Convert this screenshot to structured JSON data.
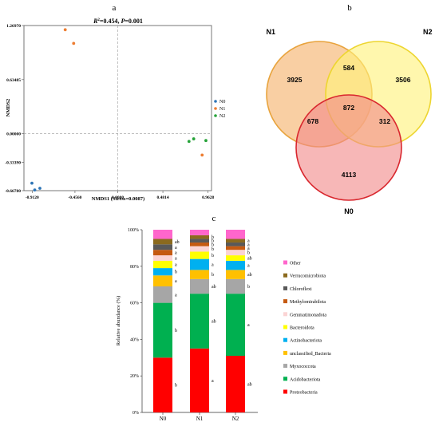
{
  "panels": {
    "a": {
      "label": "a",
      "title_r2": "R",
      "title_rest": "=0.454, ",
      "title_p": "P",
      "title_pval": "=0.001",
      "xlabel": "NMDS1 (Stress=0.0087)",
      "ylabel": "NMDS2",
      "xticks": [
        "-0.9120",
        "-0.4560",
        "0.0000",
        "0.4814",
        "0.9628"
      ],
      "yticks": [
        "1.26970",
        "0.63485",
        "0.00000",
        "-0.33390",
        "-0.66780"
      ]
    },
    "b": {
      "label": "b"
    },
    "c": {
      "label": "c",
      "ylabel": "Relative abundance (%)",
      "yticks": [
        "100%",
        "80%",
        "60%",
        "40%",
        "20%",
        "0%"
      ]
    }
  },
  "chart_data": [
    {
      "type": "scatter",
      "xlim": [
        -1.0,
        1.0
      ],
      "ylim": [
        -0.6678,
        1.2697
      ],
      "legend_position": "right",
      "series": [
        {
          "name": "N0",
          "color": "#2E75B6",
          "points": [
            [
              -0.915,
              -0.58
            ],
            [
              -0.885,
              -0.66
            ],
            [
              -0.83,
              -0.64
            ]
          ]
        },
        {
          "name": "N1",
          "color": "#ED7D31",
          "points": [
            [
              -0.56,
              1.22
            ],
            [
              -0.47,
              1.06
            ],
            [
              0.9,
              -0.25
            ]
          ]
        },
        {
          "name": "N2",
          "color": "#27A33A",
          "points": [
            [
              0.76,
              -0.09
            ],
            [
              0.81,
              -0.06
            ],
            [
              0.94,
              -0.08
            ]
          ]
        }
      ]
    },
    {
      "type": "venn",
      "sets": [
        {
          "name": "N1",
          "color": "#F5B26B",
          "edge": "#E8A33C"
        },
        {
          "name": "N2",
          "color": "#FFF27A",
          "edge": "#EDD530"
        },
        {
          "name": "N0",
          "color": "#F28A8A",
          "edge": "#D9272E"
        }
      ],
      "regions": {
        "N1_only": "3925",
        "N2_only": "3506",
        "N0_only": "4113",
        "N1_N2": "584",
        "N1_N0": "678",
        "N2_N0": "312",
        "all": "872"
      }
    },
    {
      "type": "bar",
      "stacked": true,
      "categories": [
        "N0",
        "N1",
        "N2"
      ],
      "ylim": [
        0,
        100
      ],
      "series": [
        {
          "name": "Proteobacteria",
          "color": "#FF0000",
          "values": [
            30,
            35,
            31
          ],
          "letters": [
            "b",
            "a",
            "ab"
          ]
        },
        {
          "name": "Acidobacteriota",
          "color": "#00B050",
          "values": [
            30,
            30,
            34
          ],
          "letters": [
            "b",
            "ab",
            "a"
          ]
        },
        {
          "name": "Myxococcota",
          "color": "#A6A6A6",
          "values": [
            9,
            8,
            8
          ],
          "letters": [
            "a",
            "ab",
            "b"
          ]
        },
        {
          "name": "unclassified_Bacteria",
          "color": "#FFC000",
          "values": [
            6,
            5,
            5
          ],
          "letters": [
            "a",
            "b",
            "ab"
          ]
        },
        {
          "name": "Actinobacteriota",
          "color": "#00B0F0",
          "values": [
            4,
            6,
            5
          ],
          "letters": [
            "b",
            "a",
            "a"
          ]
        },
        {
          "name": "Bacteroidota",
          "color": "#FFFF00",
          "values": [
            4,
            4,
            3
          ],
          "letters": [
            "a",
            "b",
            "ab"
          ]
        },
        {
          "name": "Gemmatimonadota",
          "color": "#FBD4D4",
          "values": [
            3,
            3,
            3
          ],
          "letters": [
            "a",
            "b",
            "b"
          ]
        },
        {
          "name": "Methylomirabilota",
          "color": "#C55A11",
          "values": [
            3,
            2,
            2
          ],
          "letters": [
            "a",
            "b",
            "a"
          ]
        },
        {
          "name": "Chloroflexi",
          "color": "#595959",
          "values": [
            3,
            2,
            2
          ],
          "letters": [
            "a",
            "b",
            "a"
          ]
        },
        {
          "name": "Verrucomicrobiota",
          "color": "#8B6A1E",
          "values": [
            3,
            2,
            2
          ],
          "letters": [
            "ab",
            "b",
            "a"
          ]
        },
        {
          "name": "Other",
          "color": "#FF66CC",
          "values": [
            5,
            3,
            5
          ]
        }
      ],
      "legend_position": "right"
    }
  ]
}
